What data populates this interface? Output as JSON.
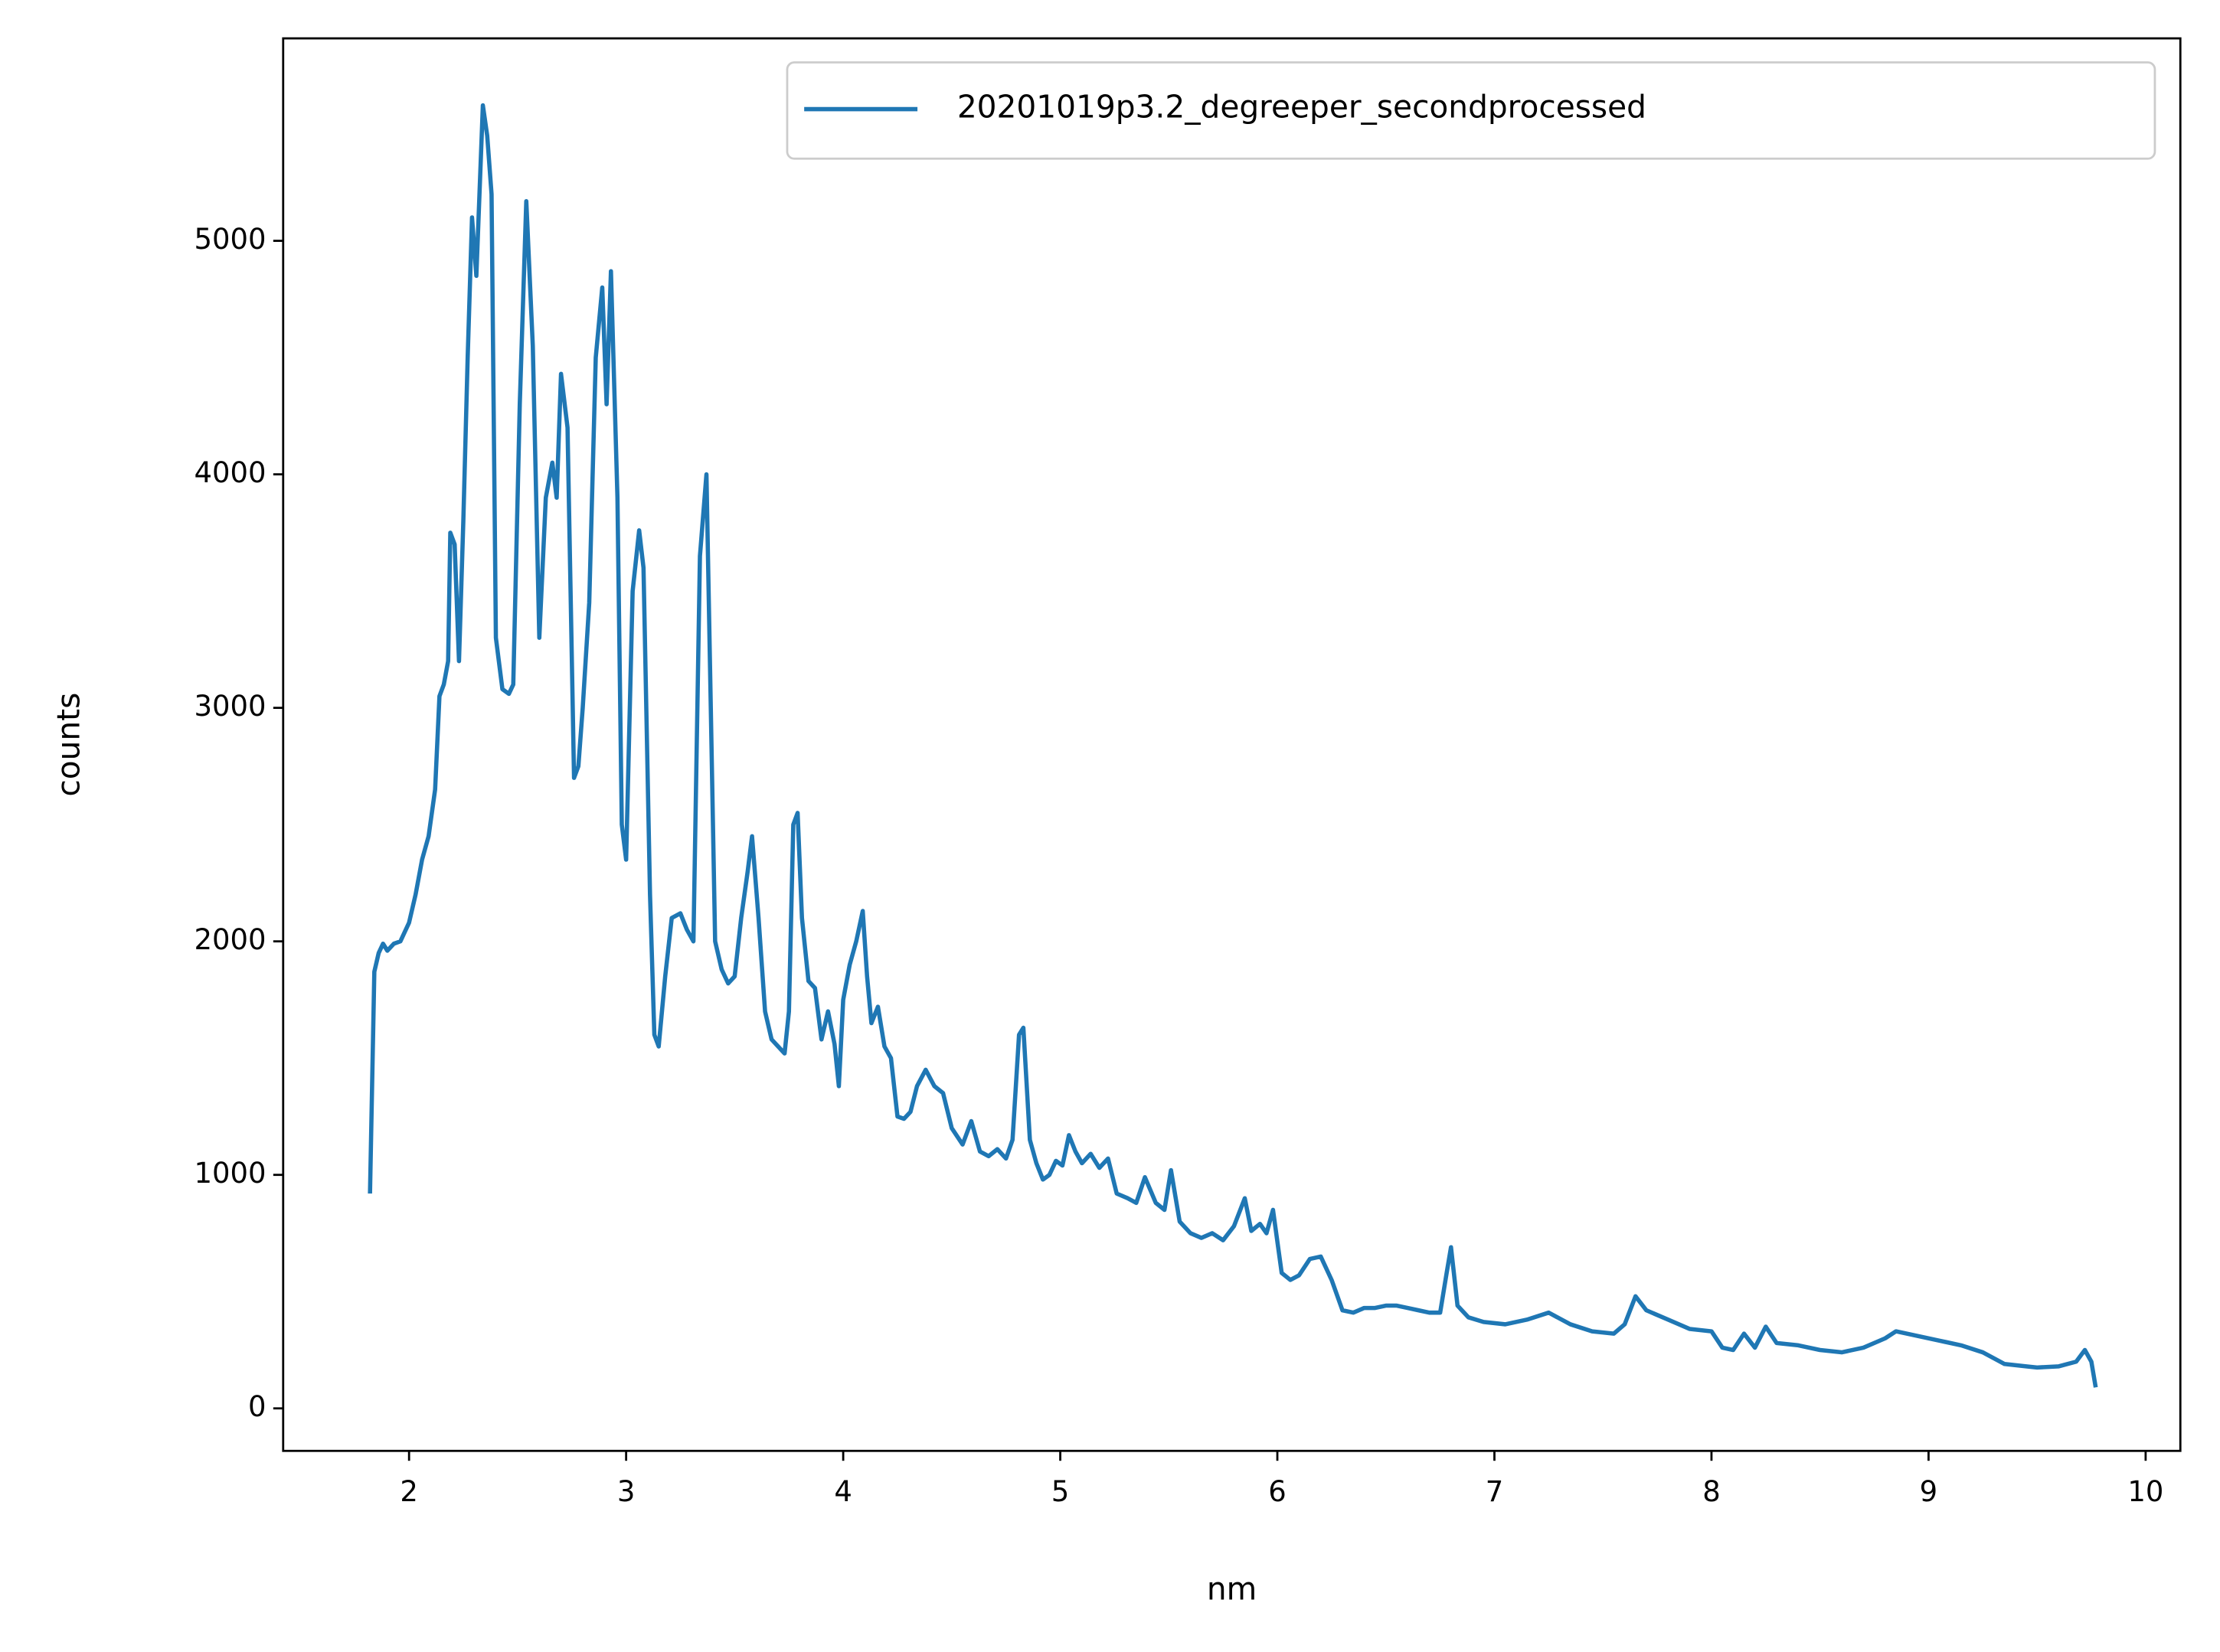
{
  "chart_data": {
    "type": "line",
    "xlabel": "nm",
    "ylabel": "counts",
    "xlim": [
      1.42,
      10.16
    ],
    "ylim": [
      -182,
      5867
    ],
    "xticks": [
      2,
      3,
      4,
      5,
      6,
      7,
      8,
      9,
      10
    ],
    "yticks": [
      0,
      1000,
      2000,
      3000,
      4000,
      5000
    ],
    "legend": "upper right",
    "x": [
      1.82,
      1.84,
      1.86,
      1.88,
      1.9,
      1.93,
      1.96,
      2.0,
      2.03,
      2.06,
      2.09,
      2.12,
      2.14,
      2.16,
      2.18,
      2.19,
      2.21,
      2.23,
      2.25,
      2.27,
      2.29,
      2.31,
      2.34,
      2.36,
      2.38,
      2.4,
      2.43,
      2.46,
      2.48,
      2.51,
      2.54,
      2.57,
      2.6,
      2.63,
      2.66,
      2.68,
      2.7,
      2.73,
      2.76,
      2.78,
      2.8,
      2.83,
      2.86,
      2.89,
      2.91,
      2.93,
      2.96,
      2.98,
      3.0,
      3.03,
      3.06,
      3.08,
      3.11,
      3.13,
      3.15,
      3.18,
      3.21,
      3.25,
      3.28,
      3.31,
      3.34,
      3.37,
      3.39,
      3.41,
      3.44,
      3.47,
      3.5,
      3.53,
      3.56,
      3.58,
      3.61,
      3.64,
      3.67,
      3.7,
      3.73,
      3.75,
      3.77,
      3.79,
      3.81,
      3.84,
      3.87,
      3.9,
      3.93,
      3.96,
      3.98,
      4.0,
      4.03,
      4.06,
      4.09,
      4.11,
      4.13,
      4.16,
      4.19,
      4.22,
      4.25,
      4.28,
      4.31,
      4.34,
      4.38,
      4.42,
      4.46,
      4.5,
      4.55,
      4.59,
      4.63,
      4.67,
      4.71,
      4.75,
      4.78,
      4.81,
      4.83,
      4.86,
      4.89,
      4.92,
      4.95,
      4.98,
      5.01,
      5.04,
      5.07,
      5.1,
      5.14,
      5.18,
      5.22,
      5.26,
      5.31,
      5.35,
      5.39,
      5.44,
      5.48,
      5.51,
      5.55,
      5.6,
      5.65,
      5.7,
      5.75,
      5.8,
      5.85,
      5.88,
      5.92,
      5.95,
      5.98,
      6.02,
      6.06,
      6.1,
      6.15,
      6.2,
      6.25,
      6.3,
      6.35,
      6.4,
      6.45,
      6.5,
      6.55,
      6.6,
      6.65,
      6.7,
      6.75,
      6.78,
      6.8,
      6.83,
      6.88,
      6.95,
      7.05,
      7.15,
      7.25,
      7.35,
      7.45,
      7.55,
      7.6,
      7.65,
      7.7,
      7.8,
      7.9,
      8.0,
      8.05,
      8.1,
      8.15,
      8.2,
      8.25,
      8.3,
      8.4,
      8.5,
      8.6,
      8.7,
      8.8,
      8.85,
      8.95,
      9.05,
      9.15,
      9.25,
      9.35,
      9.45,
      9.5,
      9.6,
      9.68,
      9.72,
      9.75,
      9.77
    ],
    "series": [
      {
        "name": "20201019p3.2_degreeper_secondprocessed",
        "color": "#1f77b4",
        "values": [
          920,
          1870,
          1950,
          1990,
          1960,
          1990,
          2000,
          2080,
          2200,
          2350,
          2450,
          2650,
          3050,
          3100,
          3200,
          3750,
          3700,
          3200,
          3800,
          4500,
          5100,
          4850,
          5580,
          5450,
          5200,
          3300,
          3080,
          3060,
          3100,
          4300,
          5170,
          4550,
          3300,
          3900,
          4050,
          3900,
          4430,
          4200,
          2700,
          2750,
          3000,
          3450,
          4500,
          4800,
          4300,
          4870,
          3900,
          2500,
          2350,
          3500,
          3760,
          3600,
          2200,
          1600,
          1550,
          1850,
          2100,
          2120,
          2050,
          2000,
          3650,
          4000,
          3000,
          2000,
          1880,
          1820,
          1850,
          2100,
          2300,
          2450,
          2100,
          1700,
          1580,
          1550,
          1520,
          1700,
          2500,
          2550,
          2100,
          1830,
          1800,
          1580,
          1700,
          1560,
          1380,
          1750,
          1900,
          2000,
          2130,
          1850,
          1650,
          1720,
          1550,
          1500,
          1250,
          1240,
          1270,
          1380,
          1450,
          1380,
          1350,
          1200,
          1130,
          1230,
          1100,
          1080,
          1110,
          1070,
          1150,
          1600,
          1630,
          1150,
          1050,
          980,
          1000,
          1060,
          1040,
          1170,
          1100,
          1050,
          1090,
          1030,
          1070,
          920,
          900,
          880,
          990,
          880,
          850,
          1020,
          800,
          750,
          730,
          750,
          720,
          780,
          900,
          760,
          790,
          750,
          850,
          580,
          550,
          570,
          640,
          650,
          550,
          420,
          410,
          430,
          430,
          440,
          440,
          430,
          420,
          410,
          410,
          580,
          690,
          440,
          390,
          370,
          360,
          380,
          410,
          360,
          330,
          320,
          360,
          480,
          420,
          380,
          340,
          330,
          260,
          250,
          320,
          260,
          350,
          280,
          270,
          250,
          240,
          260,
          300,
          330,
          310,
          290,
          270,
          240,
          190,
          180,
          175,
          180,
          200,
          250,
          200,
          90
        ]
      }
    ]
  }
}
